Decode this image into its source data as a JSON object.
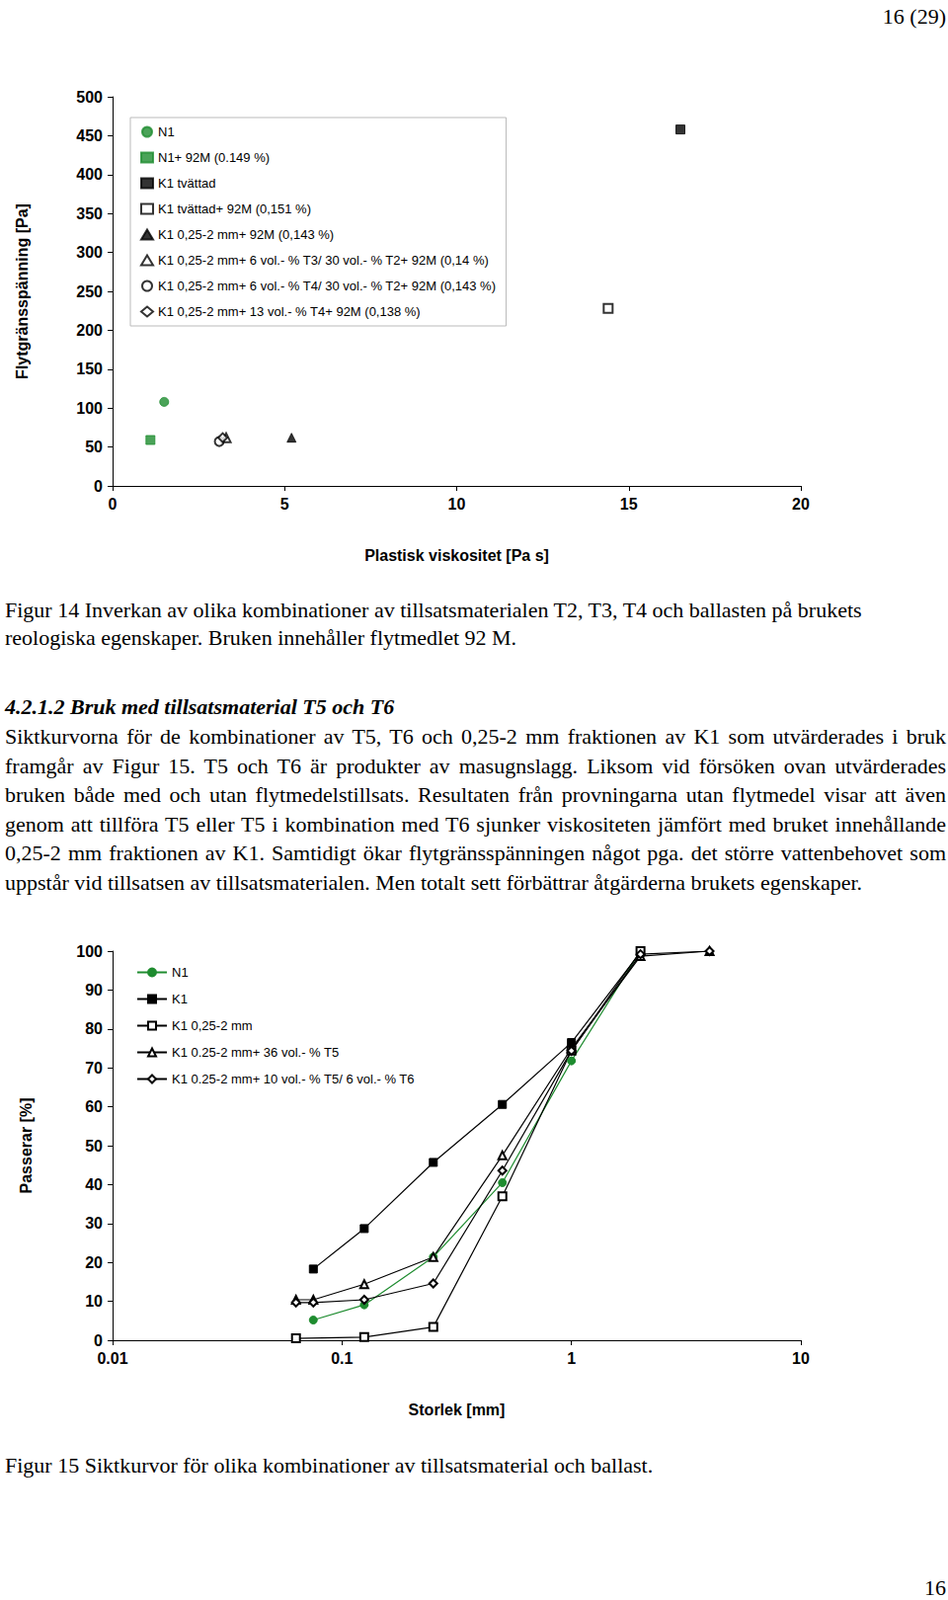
{
  "header": "16 (29)",
  "chart_data": [
    {
      "type": "scatter",
      "x_label": "Plastisk viskositet [Pa s]",
      "y_label": "Flytgränsspänning [Pa]",
      "xlim": [
        0,
        20
      ],
      "xticks": [
        0,
        5,
        10,
        15,
        20
      ],
      "ylim": [
        0,
        500
      ],
      "yticks": [
        0,
        50,
        100,
        150,
        200,
        250,
        300,
        350,
        400,
        450,
        500
      ],
      "grid": false,
      "legend": "upper left",
      "series": [
        {
          "name": "N1",
          "color": "#1e8c2f",
          "marker": "circle",
          "x": [
            1.5
          ],
          "values": [
            108
          ]
        },
        {
          "name": "N1+ 92M (0.149 %)",
          "color": "#1e8c2f",
          "marker": "square",
          "x": [
            1.1
          ],
          "values": [
            59
          ]
        },
        {
          "name": "K1 tvättad",
          "color": "#000000",
          "marker": "square",
          "x": [
            16.5
          ],
          "values": [
            458
          ]
        },
        {
          "name": "K1 tvättad+ 92M (0,151 %)",
          "color": "#000000",
          "marker": "open-square",
          "x": [
            14.4
          ],
          "values": [
            228
          ]
        },
        {
          "name": "K1 0,25-2 mm+ 92M (0,143 %)",
          "color": "#000000",
          "marker": "triangle",
          "x": [
            5.2
          ],
          "values": [
            62
          ]
        },
        {
          "name": "K1 0,25-2 mm+ 6 vol.- % T3/ 30 vol.- % T2+ 92M (0,14 %)",
          "color": "#000000",
          "marker": "open-triangle",
          "x": [
            3.3
          ],
          "values": [
            62
          ]
        },
        {
          "name": "K1 0,25-2 mm+ 6 vol.- % T4/ 30 vol.- % T2+ 92M (0,143 %)",
          "color": "#000000",
          "marker": "open-circle",
          "x": [
            3.1
          ],
          "values": [
            57
          ]
        },
        {
          "name": "K1 0,25-2 mm+ 13 vol.- % T4+ 92M (0,138 %)",
          "color": "#000000",
          "marker": "open-diamond",
          "x": [
            3.2
          ],
          "values": [
            62
          ]
        }
      ]
    },
    {
      "type": "line",
      "log": "x",
      "x_label": "Storlek [mm]",
      "y_label": "Passerar [%]",
      "xlim": [
        0.01,
        10
      ],
      "xticks": [
        0.01,
        0.1,
        1,
        10
      ],
      "ylim": [
        0,
        100
      ],
      "yticks": [
        0,
        10,
        20,
        30,
        40,
        50,
        60,
        70,
        80,
        90,
        100
      ],
      "grid": false,
      "legend": "upper left",
      "series": [
        {
          "name": "N1",
          "color": "#1e8c2f",
          "marker": "circle",
          "line_style": "solid",
          "x": [
            0.075,
            0.125,
            0.25,
            0.5,
            1,
            2
          ],
          "values": [
            5.2,
            9.1,
            21.4,
            40.5,
            71.8,
            100
          ]
        },
        {
          "name": "K1",
          "color": "#000000",
          "marker": "square",
          "line_style": "solid",
          "x": [
            0.075,
            0.125,
            0.25,
            0.5,
            1,
            2
          ],
          "values": [
            18.3,
            28.7,
            45.7,
            60.6,
            76.5,
            99.7
          ]
        },
        {
          "name": "K1 0,25-2 mm",
          "color": "#000000",
          "marker": "open-square",
          "line_style": "solid",
          "x": [
            0.063,
            0.125,
            0.25,
            0.5,
            1,
            2
          ],
          "values": [
            0.5,
            0.8,
            3.4,
            37,
            74.4,
            100
          ]
        },
        {
          "name": "K1 0.25-2 mm+ 36 vol.- % T5",
          "color": "#000000",
          "marker": "open-triangle",
          "line_style": "solid",
          "x": [
            0.063,
            0.075,
            0.125,
            0.25,
            0.5,
            1,
            2,
            4
          ],
          "values": [
            10.4,
            10.4,
            14.4,
            21.4,
            47.5,
            75,
            98.7,
            100
          ]
        },
        {
          "name": "K1 0.25-2 mm+ 10 vol.- % T5/ 6 vol.- % T6",
          "color": "#000000",
          "marker": "open-diamond",
          "line_style": "solid",
          "x": [
            0.063,
            0.075,
            0.125,
            0.25,
            0.5,
            1,
            2,
            4
          ],
          "values": [
            9.7,
            9.7,
            10.4,
            14.6,
            43.6,
            74.4,
            99.2,
            100
          ]
        }
      ]
    }
  ],
  "figure_14_caption": "Figur 14 Inverkan av olika kombinationer av tillsatsmaterialen T2, T3, T4 och ballasten på brukets reologiska egenskaper. Bruken innehåller flytmedlet 92 M.",
  "section_heading": "4.2.1.2 Bruk med tillsatsmaterial T5 och T6",
  "paragraph": "Siktkurvorna för de kombinationer av T5, T6 och 0,25-2 mm fraktionen av K1 som utvärderades i bruk framgår av Figur 15. T5 och T6 är produkter av masugnslagg. Liksom vid försöken ovan utvärderades bruken både med och utan flytmedelstillsats. Resultaten från provningarna utan flytmedel visar att även genom att tillföra T5 eller T5 i kombination med T6 sjunker viskositeten jämfört med bruket innehållande 0,25-2 mm fraktionen av K1. Samtidigt ökar flytgränsspänningen något pga. det större vattenbehovet som uppstår vid tillsatsen av tillsatsmaterialen. Men totalt sett förbättrar åtgärderna brukets egenskaper.",
  "figure_15_caption": "Figur 15 Siktkurvor för olika kombinationer av tillsatsmaterial och ballast.",
  "footer": "16"
}
